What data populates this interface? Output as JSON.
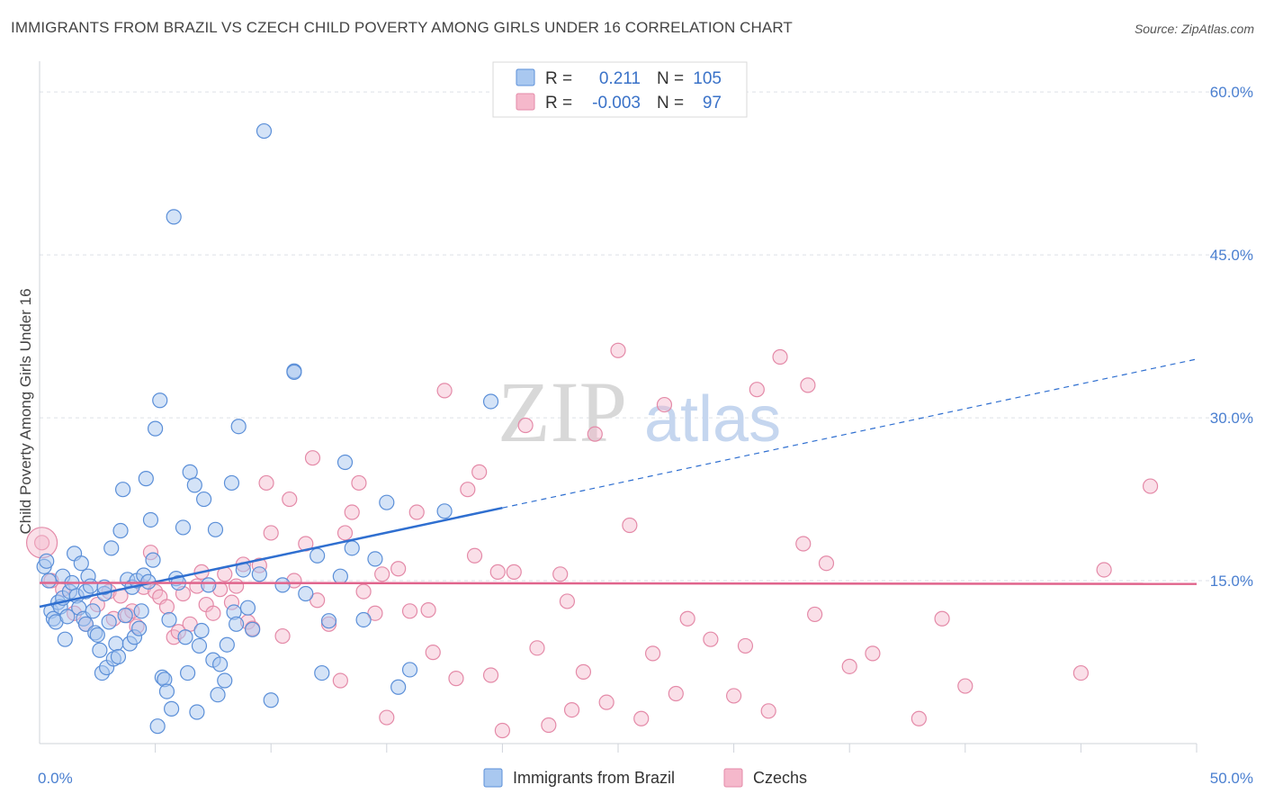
{
  "header": {
    "title": "IMMIGRANTS FROM BRAZIL VS CZECH CHILD POVERTY AMONG GIRLS UNDER 16 CORRELATION CHART",
    "source": "Source: ZipAtlas.com"
  },
  "colors": {
    "blue_fill": "#a9c8f0",
    "blue_stroke": "#5b8fd8",
    "blue_line": "#2f6fd0",
    "pink_fill": "#f5b8cb",
    "pink_stroke": "#e48aa8",
    "pink_line": "#e0648c",
    "grid": "#dde1e8",
    "tick_text": "#4a7fd0"
  },
  "legend": {
    "rows": [
      {
        "r_label": "R =",
        "r_value": "0.211",
        "n_label": "N =",
        "n_value": "105"
      },
      {
        "r_label": "R =",
        "r_value": "-0.003",
        "n_label": "N =",
        "n_value": "97"
      }
    ]
  },
  "bottom_legend": {
    "items": [
      {
        "label": "Immigrants from Brazil"
      },
      {
        "label": "Czechs"
      }
    ]
  },
  "watermark": {
    "zip": "ZIP",
    "atlas": "atlas"
  },
  "chart_data": {
    "type": "scatter",
    "title": "IMMIGRANTS FROM BRAZIL VS CZECH CHILD POVERTY AMONG GIRLS UNDER 16 CORRELATION CHART",
    "xlabel": "",
    "ylabel": "Child Poverty Among Girls Under 16",
    "xlim": [
      0,
      50
    ],
    "ylim": [
      0,
      62
    ],
    "x_tick_labels": [
      "0.0%",
      "50.0%"
    ],
    "y_ticks": [
      15,
      30,
      45,
      60
    ],
    "y_tick_labels": [
      "15.0%",
      "30.0%",
      "45.0%",
      "60.0%"
    ],
    "grid": true,
    "legend_position": "top-center",
    "series": [
      {
        "name": "Immigrants from Brazil",
        "r": 0.211,
        "n": 105,
        "trend": {
          "x0": 0,
          "y0": 12.6,
          "x_solid_end": 20,
          "y_solid_end": 21.7,
          "x1": 50,
          "y1": 35.4
        },
        "points": [
          [
            0.2,
            16.3
          ],
          [
            0.3,
            16.8
          ],
          [
            0.4,
            15.0
          ],
          [
            0.5,
            12.2
          ],
          [
            0.6,
            11.5
          ],
          [
            0.7,
            11.2
          ],
          [
            0.8,
            13.0
          ],
          [
            0.9,
            12.6
          ],
          [
            1.0,
            15.4
          ],
          [
            1.0,
            13.4
          ],
          [
            1.1,
            9.6
          ],
          [
            1.2,
            11.7
          ],
          [
            1.3,
            14.0
          ],
          [
            1.4,
            14.8
          ],
          [
            1.5,
            17.5
          ],
          [
            1.6,
            13.6
          ],
          [
            1.7,
            12.5
          ],
          [
            1.8,
            16.6
          ],
          [
            1.9,
            11.5
          ],
          [
            2.0,
            11.0
          ],
          [
            2.0,
            14.0
          ],
          [
            2.1,
            15.4
          ],
          [
            2.2,
            14.5
          ],
          [
            2.3,
            12.2
          ],
          [
            2.4,
            10.2
          ],
          [
            2.5,
            10.0
          ],
          [
            2.6,
            8.6
          ],
          [
            2.7,
            6.5
          ],
          [
            2.8,
            13.8
          ],
          [
            2.8,
            14.4
          ],
          [
            2.9,
            7.0
          ],
          [
            3.0,
            11.2
          ],
          [
            3.1,
            18.0
          ],
          [
            3.2,
            7.8
          ],
          [
            3.3,
            9.2
          ],
          [
            3.4,
            8.0
          ],
          [
            3.5,
            19.6
          ],
          [
            3.6,
            23.4
          ],
          [
            3.7,
            11.8
          ],
          [
            3.8,
            15.1
          ],
          [
            3.9,
            9.2
          ],
          [
            4.0,
            14.4
          ],
          [
            4.1,
            9.8
          ],
          [
            4.2,
            15.0
          ],
          [
            4.3,
            10.6
          ],
          [
            4.4,
            12.2
          ],
          [
            4.5,
            15.5
          ],
          [
            4.6,
            24.4
          ],
          [
            4.7,
            14.9
          ],
          [
            4.8,
            20.6
          ],
          [
            4.9,
            16.9
          ],
          [
            5.0,
            29.0
          ],
          [
            5.1,
            1.6
          ],
          [
            5.2,
            31.6
          ],
          [
            5.3,
            6.1
          ],
          [
            5.4,
            5.9
          ],
          [
            5.5,
            4.8
          ],
          [
            5.6,
            11.4
          ],
          [
            5.7,
            3.2
          ],
          [
            5.8,
            48.5
          ],
          [
            5.9,
            15.2
          ],
          [
            6.0,
            14.8
          ],
          [
            6.2,
            19.9
          ],
          [
            6.3,
            9.8
          ],
          [
            6.4,
            6.5
          ],
          [
            6.5,
            25.0
          ],
          [
            6.7,
            23.8
          ],
          [
            6.8,
            2.9
          ],
          [
            6.9,
            9.0
          ],
          [
            7.0,
            10.4
          ],
          [
            7.1,
            22.5
          ],
          [
            7.3,
            14.6
          ],
          [
            7.5,
            7.7
          ],
          [
            7.6,
            19.7
          ],
          [
            7.7,
            4.5
          ],
          [
            7.8,
            7.3
          ],
          [
            8.0,
            5.8
          ],
          [
            8.1,
            9.1
          ],
          [
            8.3,
            24.0
          ],
          [
            8.4,
            12.1
          ],
          [
            8.5,
            11.0
          ],
          [
            8.6,
            29.2
          ],
          [
            8.8,
            16.0
          ],
          [
            9.0,
            12.5
          ],
          [
            9.2,
            10.5
          ],
          [
            9.5,
            15.6
          ],
          [
            9.7,
            56.4
          ],
          [
            10.0,
            4.0
          ],
          [
            10.5,
            14.6
          ],
          [
            11.0,
            34.3
          ],
          [
            11.0,
            34.2
          ],
          [
            11.5,
            13.8
          ],
          [
            12.0,
            17.3
          ],
          [
            12.2,
            6.5
          ],
          [
            12.5,
            11.3
          ],
          [
            13.0,
            15.4
          ],
          [
            13.2,
            25.9
          ],
          [
            13.5,
            18.0
          ],
          [
            14.0,
            11.4
          ],
          [
            14.5,
            17.0
          ],
          [
            15.0,
            22.2
          ],
          [
            15.5,
            5.2
          ],
          [
            16.0,
            6.8
          ],
          [
            17.5,
            21.4
          ],
          [
            19.5,
            31.5
          ]
        ]
      },
      {
        "name": "Czechs",
        "r": -0.003,
        "n": 97,
        "trend": {
          "x0": 0,
          "y0": 14.8,
          "x1": 50,
          "y1": 14.7
        },
        "points": [
          [
            0.1,
            18.5
          ],
          [
            0.5,
            15.0
          ],
          [
            1.0,
            14.2
          ],
          [
            1.5,
            12.0
          ],
          [
            2.0,
            11.0
          ],
          [
            2.5,
            12.8
          ],
          [
            3.0,
            14.0
          ],
          [
            3.2,
            11.5
          ],
          [
            3.5,
            13.6
          ],
          [
            3.8,
            11.8
          ],
          [
            4.0,
            12.2
          ],
          [
            4.2,
            10.8
          ],
          [
            4.5,
            14.4
          ],
          [
            4.8,
            17.6
          ],
          [
            5.0,
            14.0
          ],
          [
            5.2,
            13.5
          ],
          [
            5.5,
            12.6
          ],
          [
            5.8,
            9.8
          ],
          [
            6.0,
            10.3
          ],
          [
            6.2,
            13.8
          ],
          [
            6.5,
            11.0
          ],
          [
            6.8,
            14.5
          ],
          [
            7.0,
            15.8
          ],
          [
            7.2,
            12.8
          ],
          [
            7.5,
            12.0
          ],
          [
            7.8,
            14.2
          ],
          [
            8.0,
            15.6
          ],
          [
            8.3,
            13.0
          ],
          [
            8.5,
            14.5
          ],
          [
            8.8,
            16.5
          ],
          [
            9.0,
            11.2
          ],
          [
            9.2,
            10.6
          ],
          [
            9.5,
            16.4
          ],
          [
            9.8,
            24.0
          ],
          [
            10.0,
            19.4
          ],
          [
            10.5,
            9.9
          ],
          [
            10.8,
            22.5
          ],
          [
            11.0,
            15.0
          ],
          [
            11.5,
            18.4
          ],
          [
            11.8,
            26.3
          ],
          [
            12.0,
            13.2
          ],
          [
            12.5,
            11.0
          ],
          [
            13.0,
            5.8
          ],
          [
            13.2,
            19.4
          ],
          [
            13.5,
            21.3
          ],
          [
            13.8,
            24.0
          ],
          [
            14.0,
            14.0
          ],
          [
            14.5,
            12.0
          ],
          [
            14.8,
            15.6
          ],
          [
            15.0,
            2.4
          ],
          [
            15.5,
            16.1
          ],
          [
            16.0,
            12.2
          ],
          [
            16.3,
            21.3
          ],
          [
            16.8,
            12.3
          ],
          [
            17.0,
            8.4
          ],
          [
            17.5,
            32.5
          ],
          [
            18.0,
            6.0
          ],
          [
            18.5,
            23.4
          ],
          [
            18.8,
            17.3
          ],
          [
            19.0,
            25.0
          ],
          [
            19.5,
            6.3
          ],
          [
            19.8,
            15.8
          ],
          [
            20.0,
            1.2
          ],
          [
            20.5,
            15.8
          ],
          [
            21.0,
            29.3
          ],
          [
            21.5,
            8.8
          ],
          [
            22.0,
            1.7
          ],
          [
            22.5,
            15.6
          ],
          [
            22.8,
            13.1
          ],
          [
            23.0,
            3.1
          ],
          [
            23.5,
            6.6
          ],
          [
            24.0,
            28.5
          ],
          [
            24.5,
            3.8
          ],
          [
            25.0,
            36.2
          ],
          [
            25.5,
            20.1
          ],
          [
            26.0,
            2.3
          ],
          [
            26.5,
            8.3
          ],
          [
            27.0,
            31.2
          ],
          [
            27.5,
            4.6
          ],
          [
            28.0,
            11.5
          ],
          [
            29.0,
            9.6
          ],
          [
            30.0,
            4.4
          ],
          [
            30.5,
            9.0
          ],
          [
            31.0,
            32.6
          ],
          [
            31.5,
            3.0
          ],
          [
            32.0,
            35.6
          ],
          [
            33.0,
            18.4
          ],
          [
            33.2,
            33.0
          ],
          [
            33.5,
            11.9
          ],
          [
            34.0,
            16.6
          ],
          [
            35.0,
            7.1
          ],
          [
            36.0,
            8.3
          ],
          [
            38.0,
            2.3
          ],
          [
            39.0,
            11.5
          ],
          [
            40.0,
            5.3
          ],
          [
            45.0,
            6.5
          ],
          [
            46.0,
            16.0
          ],
          [
            48.0,
            23.7
          ]
        ]
      }
    ]
  }
}
